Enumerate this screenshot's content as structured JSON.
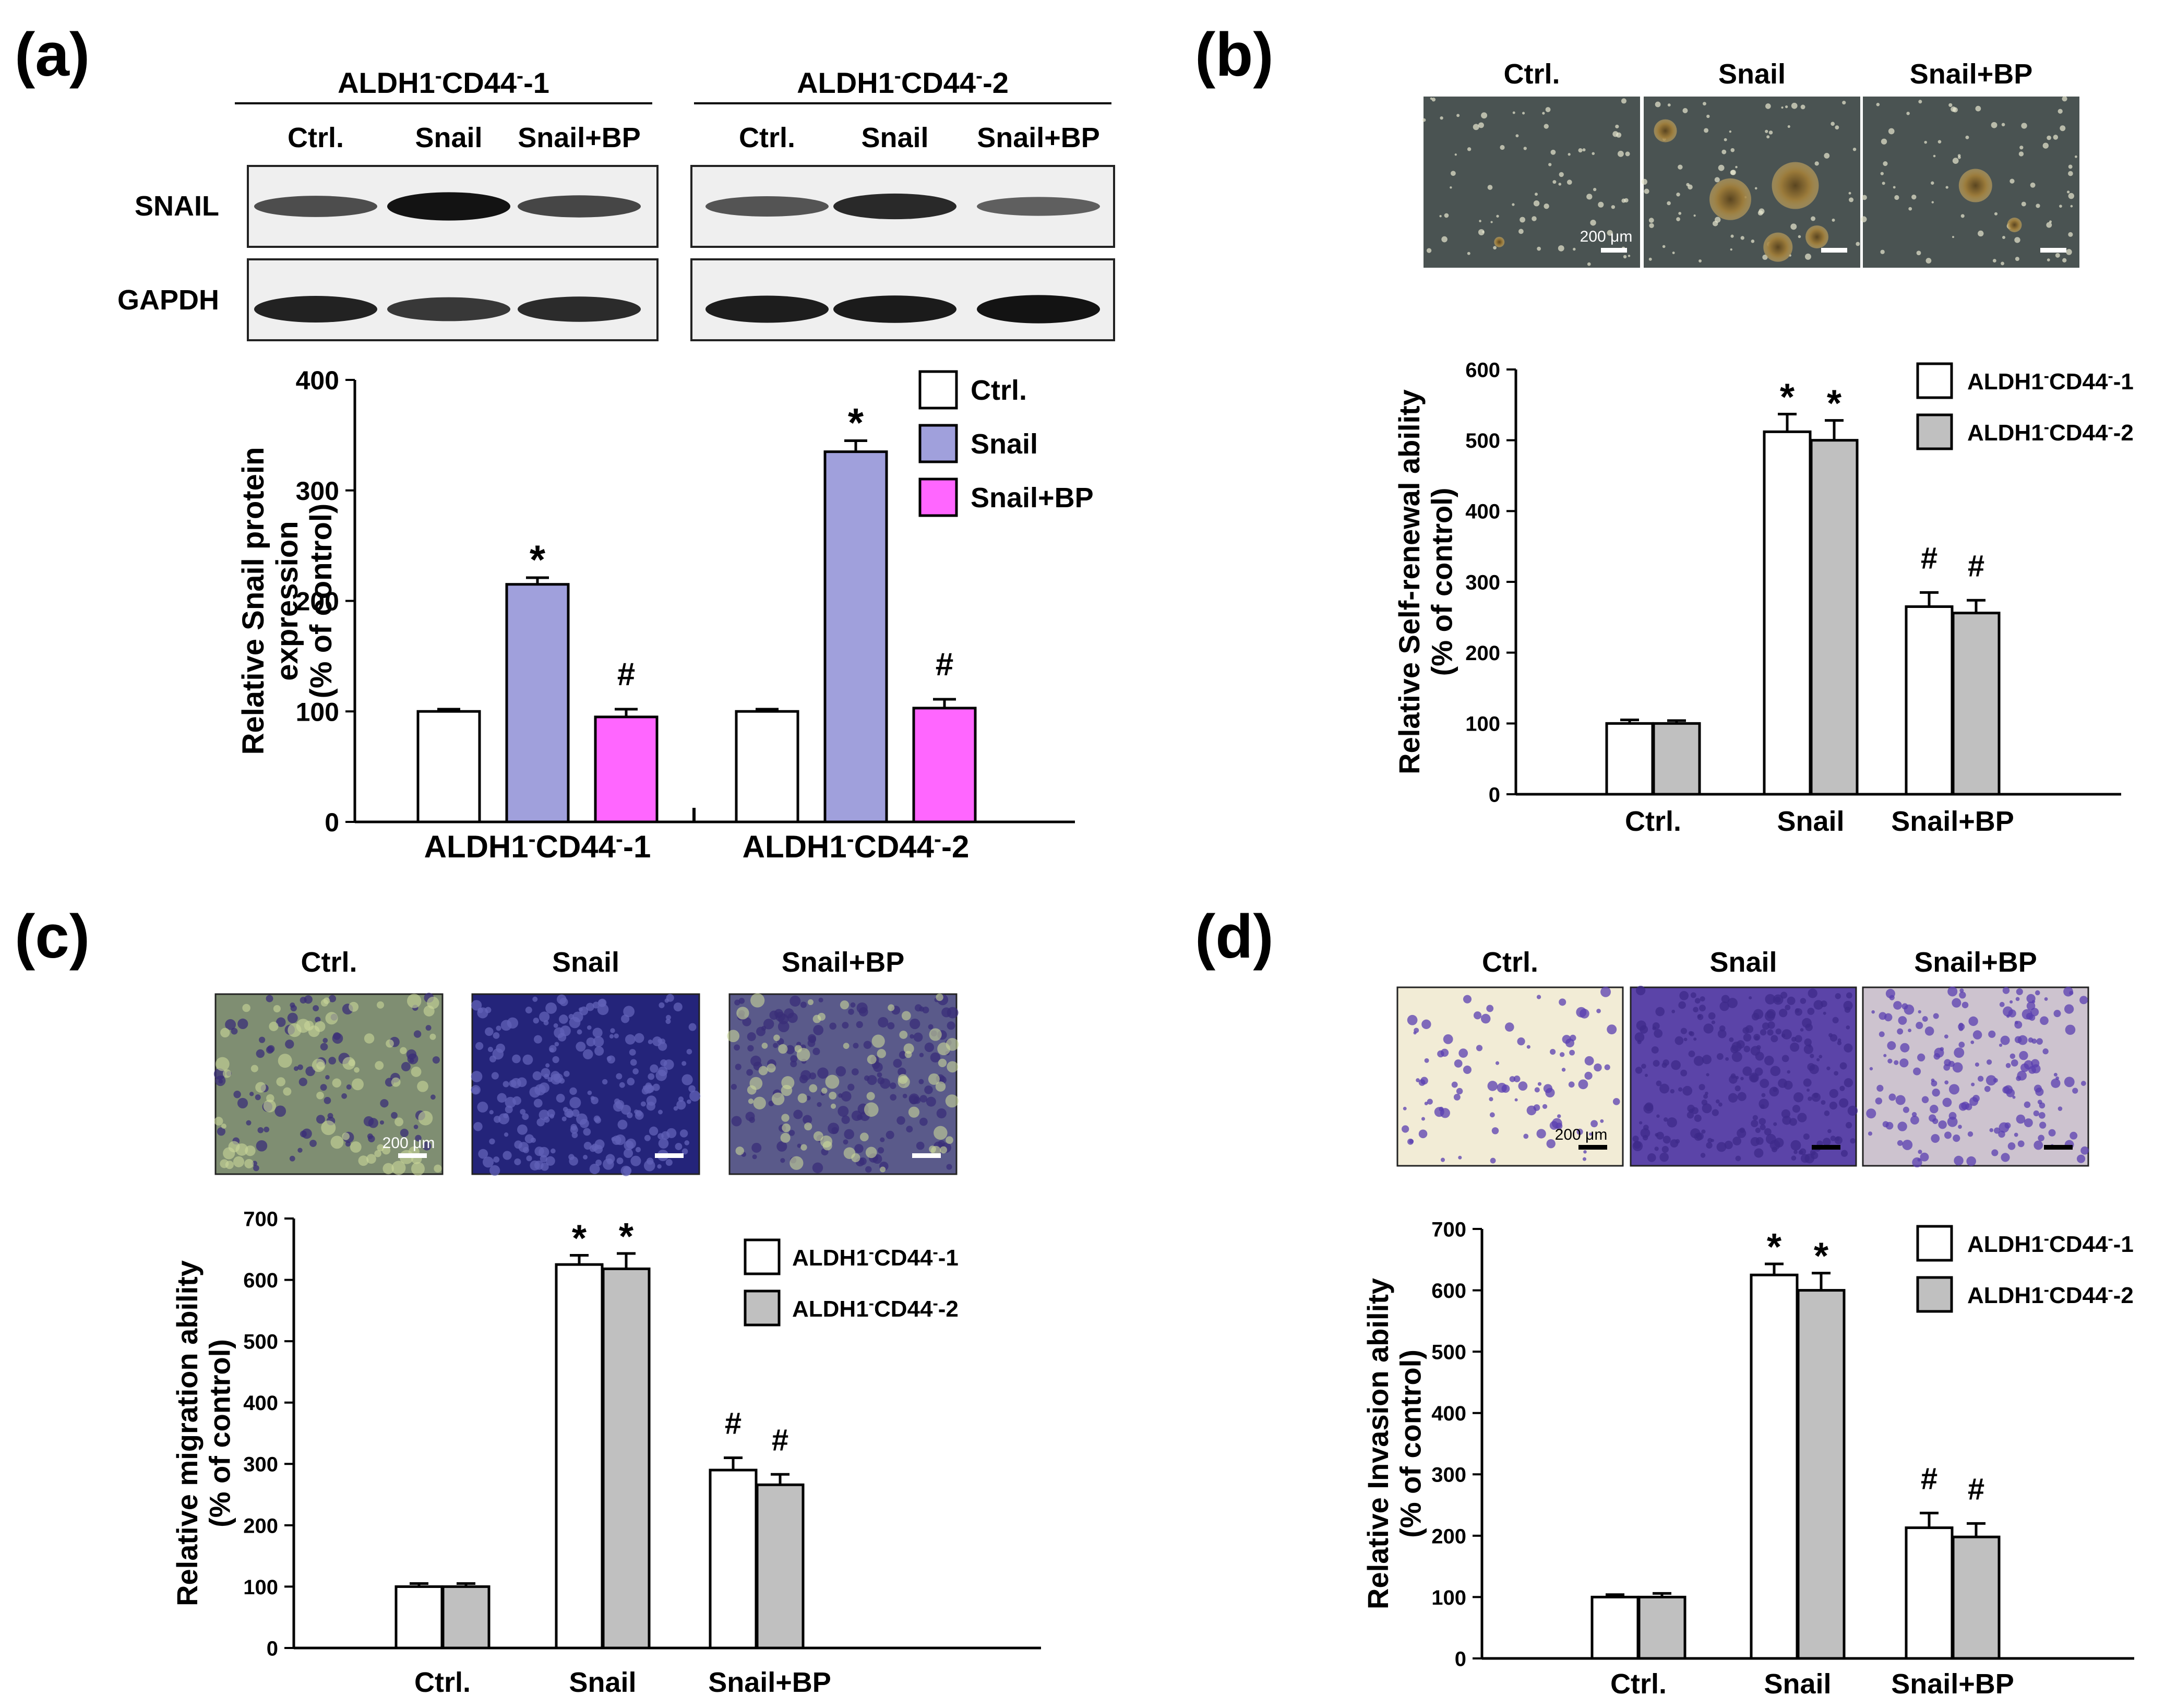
{
  "figure": {
    "blot": {
      "group1_title": "ALDH1",
      "group1_suffix": "-1",
      "group2_title": "ALDH1",
      "group2_suffix": "-2",
      "cd44": "CD44",
      "neg": "-",
      "lanes": [
        "Ctrl.",
        "Snail",
        "Snail+BP"
      ],
      "row_labels": [
        "SNAIL",
        "GAPDH"
      ],
      "snail_band_intensity": [
        0.55,
        0.95,
        0.6,
        0.5,
        0.8,
        0.42
      ],
      "gapdh_band_intensity": [
        0.85,
        0.7,
        0.78,
        0.88,
        0.9,
        0.95
      ]
    },
    "images_b": {
      "labels": [
        "Ctrl.",
        "Snail",
        "Snail+BP"
      ],
      "scale": "200 μm"
    },
    "images_c": {
      "labels": [
        "Ctrl.",
        "Snail",
        "Snail+BP"
      ],
      "scale": "200 μm"
    },
    "images_d": {
      "labels": [
        "Ctrl.",
        "Snail",
        "Snail+BP"
      ],
      "scale": "200 μm"
    },
    "colors": {
      "snail_bar": "#a0a0dc",
      "snailbp_bar": "#ff66ff",
      "grey_bar": "#c0c0c0",
      "white_bar": "#ffffff"
    }
  },
  "chart_data": [
    {
      "panel": "(a)",
      "type": "bar",
      "categories": [
        "ALDH1-CD44--1",
        "ALDH1-CD44--2"
      ],
      "series": [
        {
          "name": "Ctrl.",
          "values": [
            100,
            100
          ],
          "errors": [
            2,
            2
          ],
          "marks": [
            "",
            ""
          ]
        },
        {
          "name": "Snail",
          "values": [
            215,
            335
          ],
          "errors": [
            6,
            10
          ],
          "marks": [
            "*",
            "*"
          ]
        },
        {
          "name": "Snail+BP",
          "values": [
            95,
            103
          ],
          "errors": [
            7,
            8
          ],
          "marks": [
            "#",
            "#"
          ]
        }
      ],
      "ylabel": [
        "Relative Snail protein",
        "expression",
        "(% of control)"
      ],
      "ylim": [
        0,
        400
      ],
      "yticks": [
        0,
        100,
        200,
        300,
        400
      ],
      "legend": "top-right"
    },
    {
      "panel": "(b)",
      "type": "bar",
      "categories": [
        "Ctrl.",
        "Snail",
        "Snail+BP"
      ],
      "series": [
        {
          "name": "ALDH1-CD44--1",
          "values": [
            100,
            512,
            265
          ],
          "errors": [
            5,
            25,
            20
          ],
          "marks": [
            "",
            "*",
            "#"
          ]
        },
        {
          "name": "ALDH1-CD44--2",
          "values": [
            100,
            500,
            256
          ],
          "errors": [
            4,
            28,
            18
          ],
          "marks": [
            "",
            "*",
            "#"
          ]
        }
      ],
      "ylabel": [
        "Relative Self-renewal ability",
        "(% of control)"
      ],
      "ylim": [
        0,
        600
      ],
      "yticks": [
        0,
        100,
        200,
        300,
        400,
        500,
        600
      ],
      "legend": "top-right"
    },
    {
      "panel": "(c)",
      "type": "bar",
      "categories": [
        "Ctrl.",
        "Snail",
        "Snail+BP"
      ],
      "series": [
        {
          "name": "ALDH1-CD44--1",
          "values": [
            100,
            625,
            290
          ],
          "errors": [
            5,
            15,
            20
          ],
          "marks": [
            "",
            "*",
            "#"
          ]
        },
        {
          "name": "ALDH1-CD44--2",
          "values": [
            100,
            618,
            266
          ],
          "errors": [
            5,
            25,
            17
          ],
          "marks": [
            "",
            "*",
            "#"
          ]
        }
      ],
      "ylabel": [
        "Relative migration ability",
        "(% of control)"
      ],
      "ylim": [
        0,
        700
      ],
      "yticks": [
        0,
        100,
        200,
        300,
        400,
        500,
        600,
        700
      ],
      "legend": "top-right"
    },
    {
      "panel": "(d)",
      "type": "bar",
      "categories": [
        "Ctrl.",
        "Snail",
        "Snail+BP"
      ],
      "series": [
        {
          "name": "ALDH1-CD44--1",
          "values": [
            100,
            625,
            213
          ],
          "errors": [
            4,
            18,
            24
          ],
          "marks": [
            "",
            "*",
            "#"
          ]
        },
        {
          "name": "ALDH1-CD44--2",
          "values": [
            100,
            600,
            198
          ],
          "errors": [
            6,
            28,
            22
          ],
          "marks": [
            "",
            "*",
            "#"
          ]
        }
      ],
      "ylabel": [
        "Relative Invasion ability",
        "(% of control)"
      ],
      "ylim": [
        0,
        700
      ],
      "yticks": [
        0,
        100,
        200,
        300,
        400,
        500,
        600,
        700
      ],
      "legend": "top-right"
    }
  ]
}
